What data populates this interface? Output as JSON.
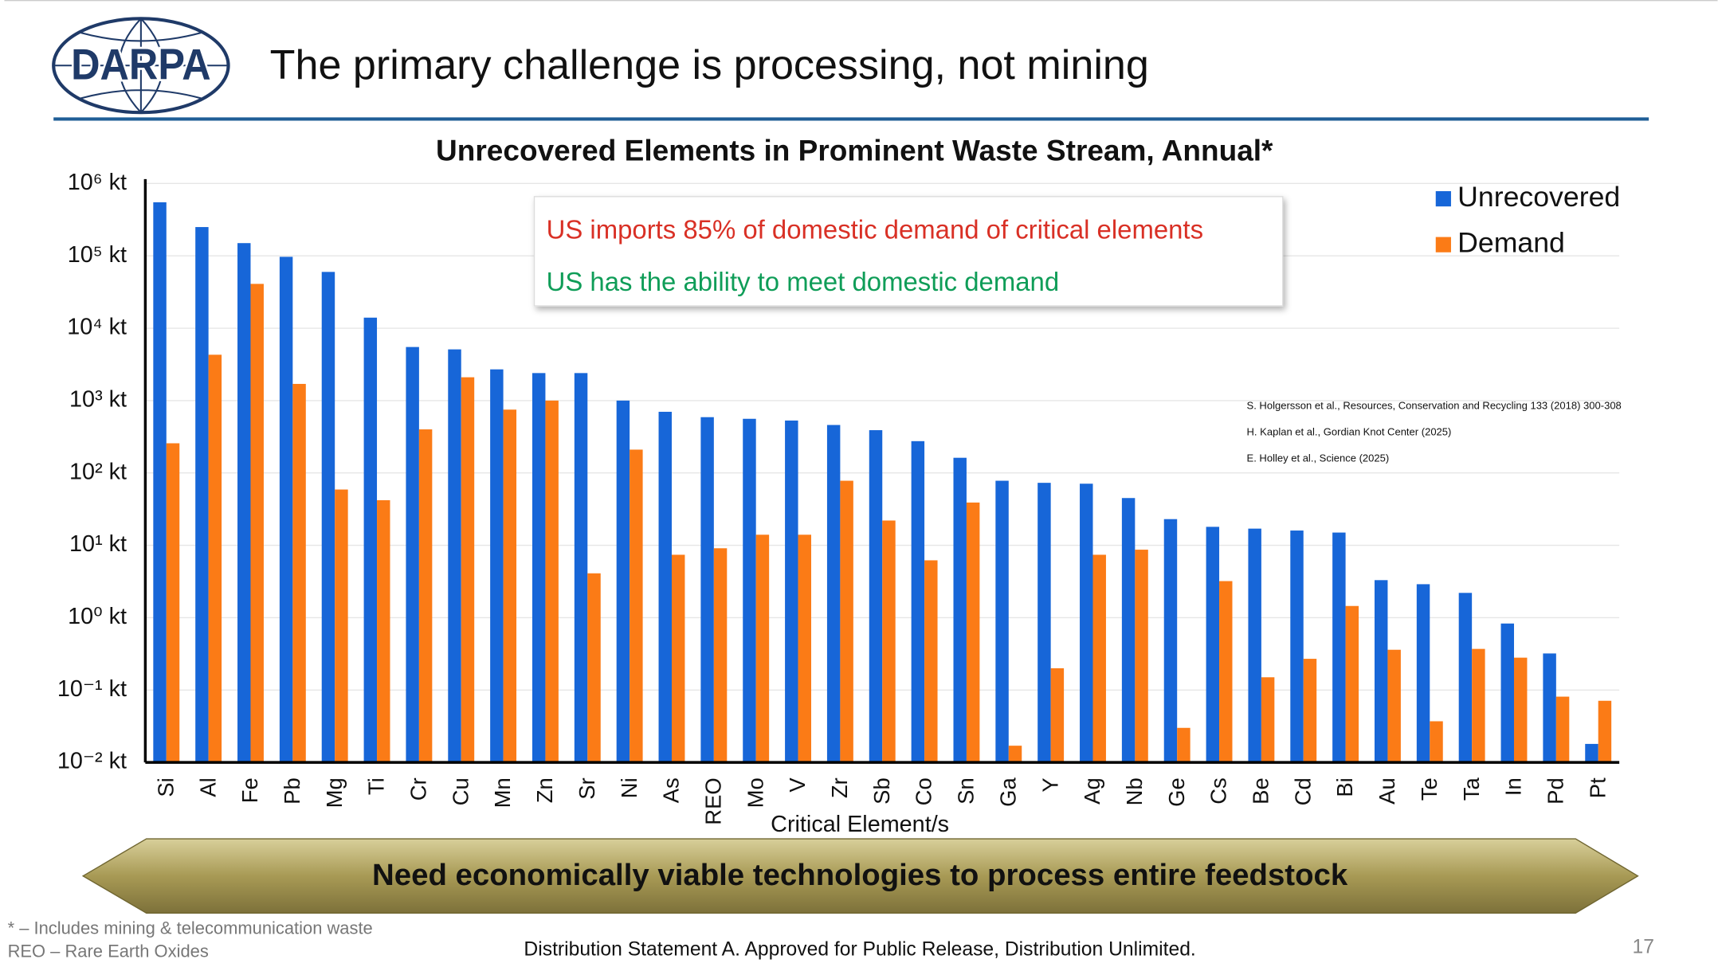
{
  "header": {
    "logo": "DARPA",
    "title": "The primary challenge is processing, not mining"
  },
  "annotation": [
    "US imports 85% of domestic demand of critical elements",
    "US has the ability to meet domestic demand"
  ],
  "citations": [
    "S. Holgersson et al., Resources, Conservation and Recycling 133 (2018) 300-308",
    "H. Kaplan et al., Gordian Knot Center (2025)",
    "E. Holley et al., Science (2025)"
  ],
  "banner": "Need economically viable technologies to process entire feedstock",
  "footnotes": [
    "* – Includes mining & telecommunication waste",
    "REO – Rare Earth Oxides"
  ],
  "footer": "Distribution Statement A. Approved for Public Release, Distribution Unlimited.",
  "page_number": "17",
  "chart_data": {
    "type": "bar",
    "title": "Unrecovered Elements in Prominent Waste Stream, Annual*",
    "x_label": "Critical Element/s",
    "categories": [
      "Si",
      "Al",
      "Fe",
      "Pb",
      "Mg",
      "Ti",
      "Cr",
      "Cu",
      "Mn",
      "Zn",
      "Sr",
      "Ni",
      "As",
      "REO",
      "Mo",
      "V",
      "Zr",
      "Sb",
      "Co",
      "Sn",
      "Ga",
      "Y",
      "Ag",
      "Nb",
      "Ge",
      "Cs",
      "Be",
      "Cd",
      "Bi",
      "Au",
      "Te",
      "Ta",
      "In",
      "Pd",
      "Pt"
    ],
    "series": [
      {
        "name": "Unrecovered",
        "color": "#1766d8",
        "values": [
          550000,
          250000,
          150000,
          97000,
          60000,
          14000,
          5500,
          5100,
          2700,
          2400,
          2400,
          1000,
          700,
          590,
          560,
          530,
          460,
          390,
          275,
          162,
          78,
          73,
          71,
          45,
          23,
          18,
          17,
          16,
          15,
          3.3,
          2.9,
          2.2,
          0.83,
          0.32,
          0.018
        ]
      },
      {
        "name": "Demand",
        "color": "#fb7b16",
        "values": [
          257,
          4300,
          41000,
          1700,
          59,
          42,
          400,
          2100,
          750,
          1000,
          4.1,
          210,
          7.4,
          9.1,
          14,
          14,
          78,
          22,
          6.2,
          39,
          0.017,
          0.2,
          7.4,
          8.7,
          0.03,
          3.2,
          0.15,
          0.27,
          1.45,
          0.36,
          0.037,
          0.37,
          0.28,
          0.081,
          0.071
        ]
      }
    ],
    "log_scale": true,
    "grid": true,
    "legend": "top-right",
    "ylim": [
      0.01,
      1000000
    ],
    "yticks": [
      {
        "value": 0.01,
        "label": "10⁻² kt"
      },
      {
        "value": 0.1,
        "label": "10⁻¹ kt"
      },
      {
        "value": 1,
        "label": "10⁰ kt"
      },
      {
        "value": 10,
        "label": "10¹ kt"
      },
      {
        "value": 100,
        "label": "10² kt"
      },
      {
        "value": 1000,
        "label": "10³ kt"
      },
      {
        "value": 10000,
        "label": "10⁴ kt"
      },
      {
        "value": 100000,
        "label": "10⁵ kt"
      },
      {
        "value": 1000000,
        "label": "10⁶ kt"
      }
    ]
  }
}
